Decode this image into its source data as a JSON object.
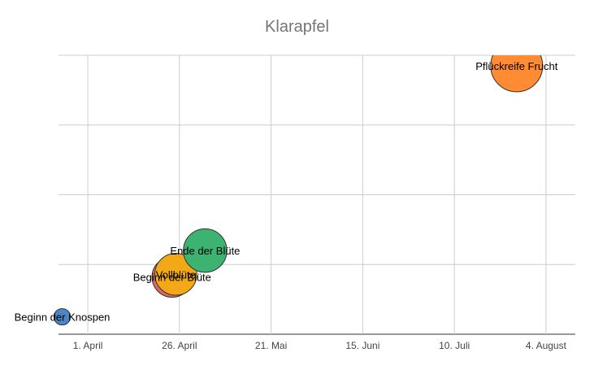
{
  "chart_data": {
    "type": "scatter",
    "title": "Klarapfel",
    "xlabel": "",
    "ylabel": "",
    "x_axis": {
      "type": "date",
      "range": [
        "2024-03-24",
        "2024-08-12"
      ],
      "ticks": [
        "2024-04-01",
        "2024-04-26",
        "2024-05-21",
        "2024-06-15",
        "2024-07-10",
        "2024-08-04"
      ],
      "tick_labels": [
        "1. April",
        "26. April",
        "21. Mai",
        "15. Juni",
        "10. Juli",
        "4. August"
      ]
    },
    "y_axis": {
      "range": [
        0,
        4
      ],
      "tick_labels_visible": false
    },
    "grid": true,
    "legend": "none",
    "points": [
      {
        "label": "Beginn der Knospen",
        "x": "2024-03-25",
        "y": 0.25,
        "size": 1,
        "color": "#4a86c8"
      },
      {
        "label": "Beginn der Blüte",
        "x": "2024-04-24",
        "y": 0.82,
        "size": 6,
        "color": "#e06666"
      },
      {
        "label": "Vollblüte",
        "x": "2024-04-25",
        "y": 0.86,
        "size": 6.5,
        "color": "#f3a818"
      },
      {
        "label": "Ende der Blüte",
        "x": "2024-05-03",
        "y": 1.2,
        "size": 7,
        "color": "#3cb371"
      },
      {
        "label": "Pflückreife Frucht",
        "x": "2024-07-27",
        "y": 3.85,
        "size": 10,
        "color": "#ff8c33"
      }
    ]
  }
}
